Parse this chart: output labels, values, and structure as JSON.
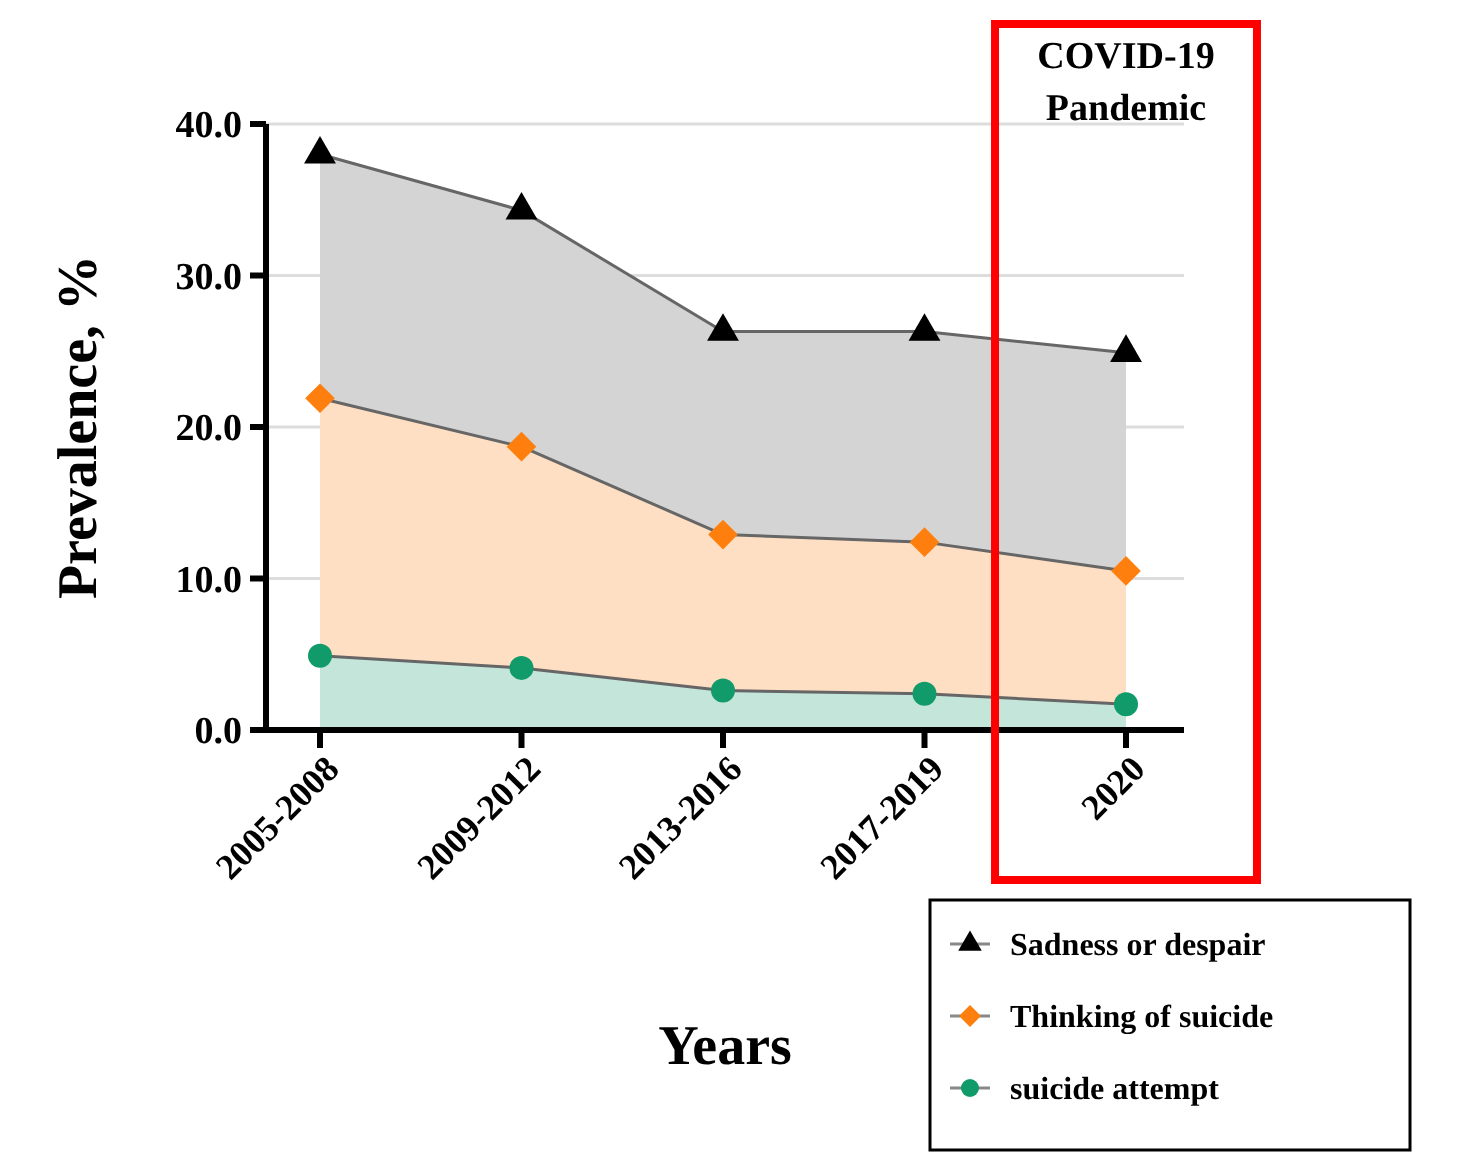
{
  "chart_data": {
    "type": "area",
    "xlabel": "Years",
    "ylabel": "Prevalence, %",
    "categories": [
      "2005-2008",
      "2009-2012",
      "2013-2016",
      "2017-2019",
      "2020"
    ],
    "series": [
      {
        "name": "Sadness or despair",
        "color": "#000000",
        "marker": "triangle",
        "values": [
          38.0,
          34.3,
          26.3,
          26.3,
          24.9
        ]
      },
      {
        "name": "Thinking of suicide",
        "color": "#ff7f0e",
        "marker": "diamond",
        "values": [
          21.9,
          18.7,
          12.9,
          12.4,
          10.5
        ]
      },
      {
        "name": "suicide attempt",
        "color": "#119a6a",
        "marker": "circle",
        "values": [
          4.9,
          4.1,
          2.6,
          2.4,
          1.7
        ]
      }
    ],
    "ylim": [
      0,
      40
    ],
    "yticks": [
      {
        "value": 0,
        "label": "0.0"
      },
      {
        "value": 10,
        "label": "10.0"
      },
      {
        "value": 20,
        "label": "20.0"
      },
      {
        "value": 30,
        "label": "30.0"
      },
      {
        "value": 40,
        "label": "40.0"
      }
    ],
    "grid": "y",
    "legend": "bottom right",
    "annotations": [
      "COVID-19\nPandemic"
    ]
  }
}
